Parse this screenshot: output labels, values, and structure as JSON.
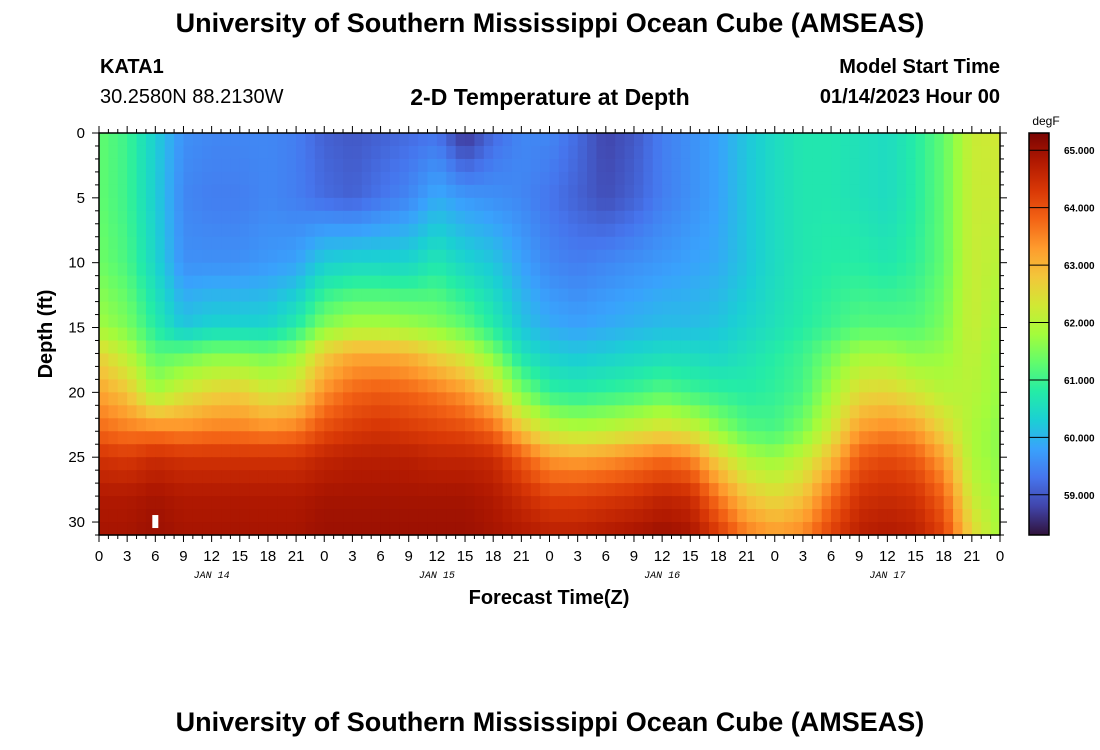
{
  "header": {
    "title": "University of Southern Mississippi Ocean Cube (AMSEAS)",
    "station_id": "KATA1",
    "station_coords": "30.2580N  88.2130W",
    "plot_title": "2-D Temperature at Depth",
    "start_label": "Model Start Time",
    "start_value": "01/14/2023 Hour 00"
  },
  "footer": {
    "title": "University of Southern Mississippi Ocean Cube (AMSEAS)"
  },
  "chart_data": {
    "type": "heatmap",
    "title": "2-D Temperature at Depth",
    "xlabel": "Forecast Time(Z)",
    "ylabel": "Depth (ft)",
    "x_tick_labels": [
      "0",
      "3",
      "6",
      "9",
      "12",
      "15",
      "18",
      "21",
      "0",
      "3",
      "6",
      "9",
      "12",
      "15",
      "18",
      "21",
      "0",
      "3",
      "6",
      "9",
      "12",
      "15",
      "18",
      "21",
      "0",
      "3",
      "6",
      "9",
      "12",
      "15",
      "18",
      "21",
      "0"
    ],
    "x_range_hours": [
      0,
      96
    ],
    "day_labels": [
      {
        "label": "JAN 14",
        "hour": 12
      },
      {
        "label": "JAN 15",
        "hour": 36
      },
      {
        "label": "JAN 16",
        "hour": 60
      },
      {
        "label": "JAN 17",
        "hour": 84
      }
    ],
    "y_tick_labels": [
      "0",
      "5",
      "10",
      "15",
      "20",
      "25",
      "30"
    ],
    "y_range_ft": [
      0,
      31
    ],
    "colorbar": {
      "unit": "degF",
      "tick_labels": [
        "65.000",
        "64.000",
        "63.000",
        "62.000",
        "61.000",
        "60.000",
        "59.000"
      ],
      "range": [
        58.3,
        65.3
      ],
      "colormap": [
        "#30123b",
        "#4145ab",
        "#4675ed",
        "#39a2fc",
        "#1bcfd4",
        "#24eca6",
        "#61fc6c",
        "#a4fc3b",
        "#d1e834",
        "#f3c63a",
        "#fe9b2d",
        "#f36315",
        "#d93806",
        "#b11901",
        "#7a0403"
      ]
    },
    "profile_hours": [
      0,
      3,
      6,
      9,
      12,
      15,
      18,
      21,
      24,
      27,
      30,
      33,
      36,
      39,
      42,
      45,
      48,
      51,
      54,
      57,
      60,
      63,
      66,
      69,
      72,
      75,
      78,
      81,
      84,
      87,
      90,
      93,
      96
    ],
    "profile_depths_ft": [
      0,
      5,
      10,
      15,
      17,
      20,
      23,
      25,
      28,
      31
    ],
    "temperature_degF": [
      [
        61.3,
        61.3,
        61.4,
        61.8,
        62.6,
        63.2,
        63.8,
        64.4,
        64.8,
        64.9
      ],
      [
        61.0,
        61.0,
        61.1,
        61.5,
        62.0,
        62.8,
        63.6,
        64.3,
        64.8,
        64.9
      ],
      [
        60.3,
        60.3,
        60.4,
        60.8,
        61.2,
        61.8,
        63.6,
        64.5,
        64.9,
        65.0
      ],
      [
        59.6,
        59.5,
        59.6,
        60.2,
        61.3,
        62.3,
        63.5,
        64.4,
        64.8,
        64.9
      ],
      [
        59.5,
        59.4,
        59.6,
        60.4,
        61.5,
        62.6,
        63.6,
        64.4,
        64.8,
        64.9
      ],
      [
        59.5,
        59.4,
        59.6,
        60.4,
        61.5,
        62.7,
        63.6,
        64.4,
        64.8,
        64.9
      ],
      [
        59.5,
        59.5,
        59.7,
        60.4,
        61.4,
        62.3,
        63.5,
        64.4,
        64.8,
        64.9
      ],
      [
        59.4,
        59.4,
        59.8,
        60.8,
        61.7,
        62.5,
        63.6,
        64.4,
        64.8,
        64.9
      ],
      [
        59.1,
        59.2,
        60.3,
        61.6,
        62.7,
        63.4,
        64.1,
        64.6,
        64.9,
        65.0
      ],
      [
        59.0,
        59.1,
        60.4,
        61.9,
        63.1,
        63.8,
        64.3,
        64.7,
        64.9,
        65.0
      ],
      [
        59.1,
        59.3,
        60.4,
        61.9,
        63.1,
        63.9,
        64.4,
        64.7,
        64.9,
        65.0
      ],
      [
        59.2,
        59.5,
        60.4,
        61.8,
        63.0,
        63.8,
        64.3,
        64.7,
        64.9,
        65.0
      ],
      [
        59.3,
        59.9,
        60.7,
        61.6,
        62.6,
        63.6,
        64.2,
        64.6,
        64.9,
        65.0
      ],
      [
        58.6,
        59.7,
        60.4,
        61.3,
        62.2,
        63.3,
        64.1,
        64.6,
        64.9,
        65.0
      ],
      [
        59.2,
        59.6,
        60.2,
        60.8,
        61.5,
        62.7,
        63.8,
        64.5,
        64.8,
        64.9
      ],
      [
        59.5,
        59.5,
        59.8,
        60.2,
        60.6,
        61.5,
        62.9,
        63.9,
        64.5,
        64.8
      ],
      [
        59.5,
        59.3,
        59.5,
        59.9,
        60.3,
        60.9,
        62.2,
        63.3,
        64.2,
        64.7
      ],
      [
        59.2,
        59.1,
        59.4,
        59.8,
        60.2,
        60.8,
        62.0,
        63.2,
        64.2,
        64.7
      ],
      [
        58.8,
        58.9,
        59.5,
        59.9,
        60.3,
        60.9,
        62.1,
        63.3,
        64.3,
        64.8
      ],
      [
        59.0,
        59.1,
        59.6,
        60.0,
        60.4,
        61.0,
        62.3,
        63.5,
        64.4,
        64.9
      ],
      [
        59.4,
        59.4,
        59.7,
        60.1,
        60.5,
        61.2,
        62.5,
        63.7,
        64.6,
        65.0
      ],
      [
        59.6,
        59.6,
        59.8,
        60.1,
        60.5,
        61.0,
        62.3,
        63.5,
        64.5,
        64.9
      ],
      [
        59.8,
        59.8,
        59.9,
        60.2,
        60.4,
        60.9,
        61.7,
        62.6,
        63.6,
        64.3
      ],
      [
        60.2,
        60.2,
        60.2,
        60.4,
        60.6,
        60.8,
        61.2,
        61.9,
        62.8,
        63.6
      ],
      [
        60.5,
        60.5,
        60.5,
        60.6,
        60.8,
        60.9,
        61.1,
        61.7,
        62.5,
        63.3
      ],
      [
        60.7,
        60.7,
        60.7,
        60.8,
        61.0,
        61.1,
        61.5,
        62.1,
        62.8,
        63.5
      ],
      [
        60.7,
        60.7,
        60.8,
        61.0,
        61.4,
        61.8,
        62.3,
        62.9,
        63.7,
        64.2
      ],
      [
        60.6,
        60.6,
        60.8,
        61.2,
        61.8,
        62.5,
        63.3,
        63.9,
        64.4,
        64.7
      ],
      [
        60.5,
        60.5,
        60.7,
        61.2,
        61.8,
        62.6,
        63.5,
        64.1,
        64.5,
        64.8
      ],
      [
        60.8,
        60.8,
        60.9,
        61.2,
        61.6,
        62.3,
        63.3,
        63.9,
        64.4,
        64.7
      ],
      [
        61.3,
        61.3,
        61.3,
        61.5,
        61.7,
        62.0,
        62.6,
        63.2,
        63.8,
        64.2
      ],
      [
        62.2,
        62.2,
        62.2,
        62.2,
        62.1,
        62.0,
        61.9,
        61.9,
        62.2,
        62.6
      ],
      [
        62.3,
        62.2,
        62.0,
        61.8,
        61.7,
        61.7,
        61.6,
        61.6,
        61.7,
        61.8
      ]
    ],
    "marker": {
      "hour": 6,
      "depth_ft": 30
    }
  }
}
